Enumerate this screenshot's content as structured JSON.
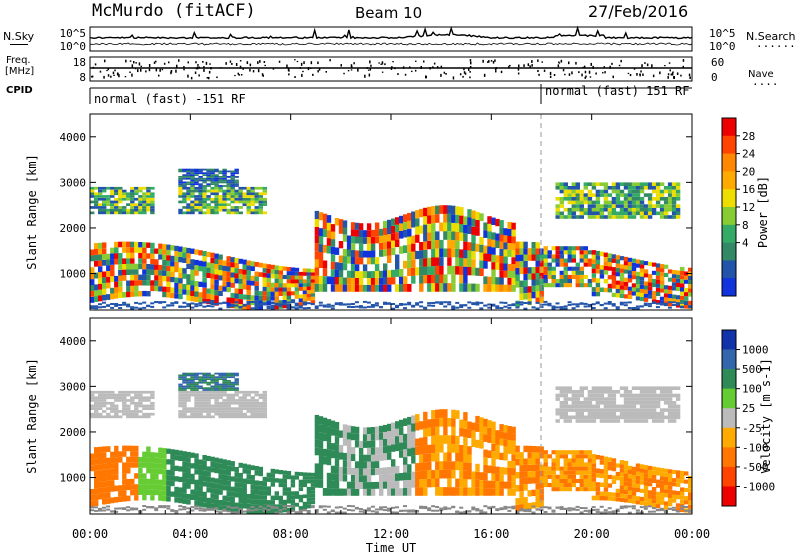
{
  "header": {
    "station": "McMurdo (fitACF)",
    "beam": "Beam 10",
    "date": "27/Feb/2016"
  },
  "summary_panels": {
    "noise": {
      "left_label": "N.Sky",
      "right_label": "N.Search",
      "right_dots": "......",
      "left_ticks": [
        "10^5",
        "10^0"
      ],
      "right_ticks": [
        "10^5",
        "10^0"
      ]
    },
    "freq": {
      "left_label": "Freq.",
      "left_unit": "[MHz]",
      "left_ticks": [
        "18",
        "8"
      ],
      "right_label": "Nave",
      "right_dots": "....",
      "right_ticks": [
        "60",
        "0"
      ]
    },
    "cpid": {
      "label": "CPID",
      "segments": [
        {
          "text": "normal (fast) -151 RF",
          "start_hour": 0
        },
        {
          "text": "normal (fast) 151 RF",
          "start_hour": 18
        }
      ]
    }
  },
  "chart_data": [
    {
      "type": "heatmap",
      "quantity": "Power",
      "ylabel": "Slant Range [km]",
      "ylim": [
        200,
        4500
      ],
      "y_ticks": [
        1000,
        2000,
        3000,
        4000
      ],
      "xlim": [
        0,
        24
      ],
      "colorbar": {
        "label": "Power [dB]",
        "ticks": [
          "28",
          "24",
          "20",
          "16",
          "12",
          "8",
          "4"
        ],
        "bins": [
          {
            "color": "#ee0000"
          },
          {
            "color": "#ff4400"
          },
          {
            "color": "#ff8800"
          },
          {
            "color": "#ffaa00"
          },
          {
            "color": "#eedd00"
          },
          {
            "color": "#88cc33"
          },
          {
            "color": "#33aa66"
          },
          {
            "color": "#338866"
          },
          {
            "color": "#2255aa"
          },
          {
            "color": "#1133dd"
          }
        ]
      }
    },
    {
      "type": "heatmap",
      "quantity": "Velocity",
      "ylabel": "Slant Range [km]",
      "ylim": [
        200,
        4500
      ],
      "y_ticks": [
        1000,
        2000,
        3000,
        4000
      ],
      "xlim": [
        0,
        24
      ],
      "xlabel": "Time UT",
      "x_ticks": [
        "00:00",
        "04:00",
        "08:00",
        "12:00",
        "16:00",
        "20:00",
        "00:00"
      ],
      "colorbar": {
        "label": "Velocity [m s-1]",
        "ticks": [
          "1000",
          "500",
          "100",
          "25",
          "-25",
          "-100",
          "-500",
          "-1000"
        ],
        "bins": [
          {
            "color": "#1133aa"
          },
          {
            "color": "#3366aa"
          },
          {
            "color": "#2e8b57"
          },
          {
            "color": "#66cc33"
          },
          {
            "color": "#bbbbbb"
          },
          {
            "color": "#ffaa00"
          },
          {
            "color": "#ff7700"
          },
          {
            "color": "#ff4400"
          },
          {
            "color": "#ee0000"
          }
        ]
      }
    }
  ]
}
